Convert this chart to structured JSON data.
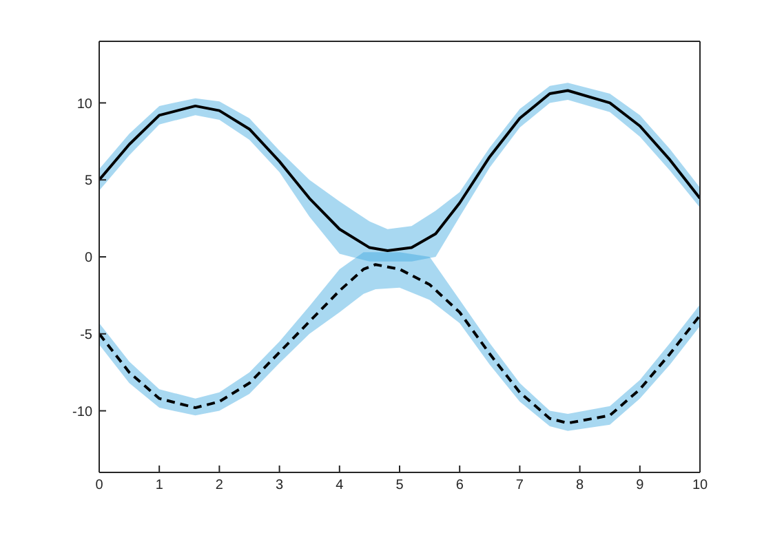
{
  "chart_data": {
    "type": "line",
    "xlim": [
      0,
      10
    ],
    "ylim": [
      -14,
      14
    ],
    "xticks": [
      0,
      1,
      2,
      3,
      4,
      5,
      6,
      7,
      8,
      9,
      10
    ],
    "yticks": [
      -10,
      -5,
      0,
      5,
      10
    ],
    "marker": "none",
    "series": [
      {
        "color": "#000000",
        "line_style": "solid",
        "x": [
          0,
          0.5,
          1,
          1.6,
          2,
          2.5,
          3,
          3.5,
          4,
          4.5,
          4.8,
          5.2,
          5.6,
          6,
          6.5,
          7,
          7.5,
          7.8,
          8.5,
          9,
          9.5,
          10
        ],
        "values": [
          5,
          7.3,
          9.2,
          9.8,
          9.5,
          8.3,
          6.2,
          3.8,
          1.8,
          0.6,
          0.4,
          0.6,
          1.5,
          3.5,
          6.5,
          9,
          10.6,
          10.8,
          10,
          8.5,
          6.3,
          3.8
        ],
        "lower": [
          4.3,
          6.6,
          8.6,
          9.2,
          8.9,
          7.6,
          5.5,
          2.6,
          0.2,
          -0.3,
          -0.3,
          -0.3,
          0,
          2.6,
          5.8,
          8.4,
          10,
          10.2,
          9.4,
          7.8,
          5.6,
          3.2
        ],
        "upper": [
          5.7,
          8,
          9.8,
          10.3,
          10.1,
          9,
          6.9,
          5,
          3.6,
          2.3,
          1.8,
          2,
          3,
          4.2,
          7.1,
          9.6,
          11.1,
          11.3,
          10.6,
          9.2,
          7,
          4.5
        ]
      },
      {
        "color": "#000000",
        "line_style": "dashed",
        "x": [
          0,
          0.5,
          1,
          1.6,
          2,
          2.5,
          3,
          3.5,
          4,
          4.4,
          4.6,
          5,
          5.5,
          6,
          6.5,
          7,
          7.5,
          7.8,
          8.5,
          9,
          9.5,
          10
        ],
        "values": [
          -5,
          -7.5,
          -9.2,
          -9.8,
          -9.4,
          -8.2,
          -6.2,
          -4.2,
          -2.2,
          -0.8,
          -0.5,
          -0.8,
          -1.8,
          -3.6,
          -6.3,
          -8.8,
          -10.5,
          -10.8,
          -10.3,
          -8.6,
          -6.3,
          -3.8
        ],
        "lower": [
          -5.7,
          -8.2,
          -9.8,
          -10.3,
          -10,
          -8.9,
          -6.9,
          -5,
          -3.6,
          -2.4,
          -2.1,
          -2,
          -2.8,
          -4.3,
          -7,
          -9.4,
          -11,
          -11.3,
          -10.9,
          -9.2,
          -7,
          -4.5
        ],
        "upper": [
          -4.3,
          -6.8,
          -8.6,
          -9.2,
          -8.8,
          -7.5,
          -5.5,
          -3.2,
          -0.8,
          0.3,
          0.3,
          0.3,
          0,
          -2.8,
          -5.6,
          -8.2,
          -10,
          -10.2,
          -9.7,
          -8,
          -5.6,
          -3.1
        ]
      }
    ]
  }
}
